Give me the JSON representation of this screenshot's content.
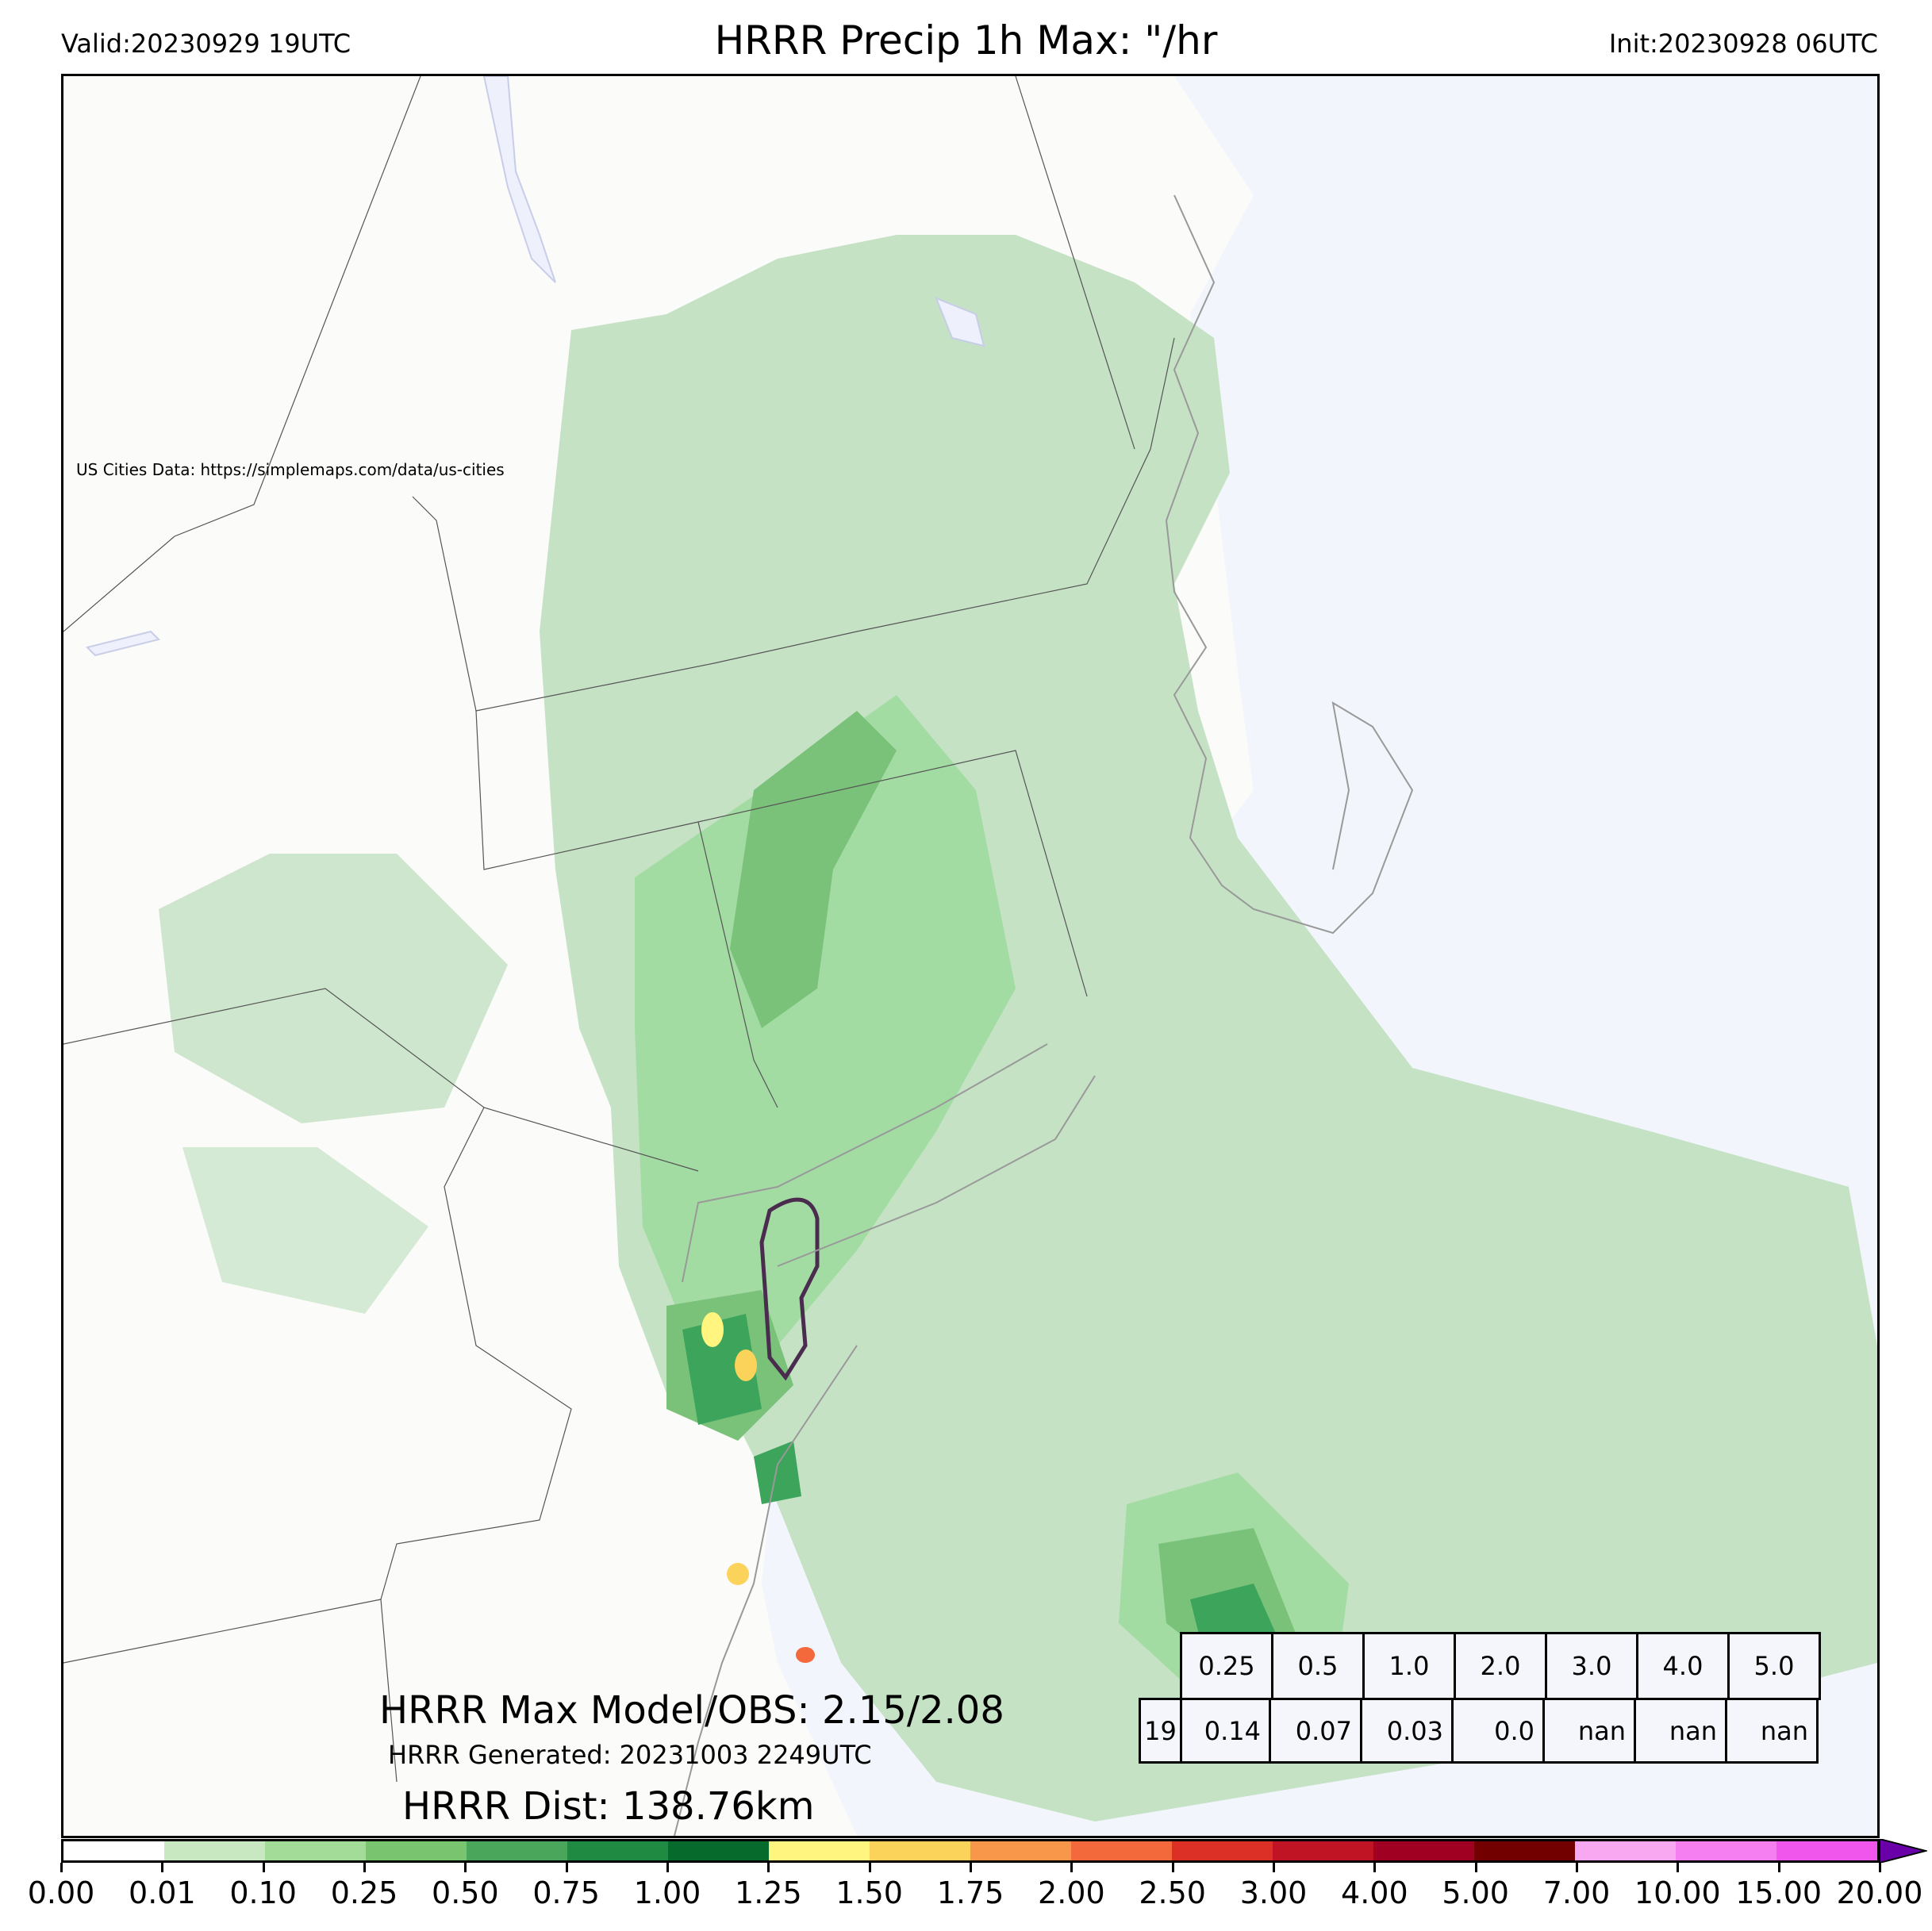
{
  "header": {
    "valid": "Valid:20230929 19UTC",
    "title": "HRRR Precip 1h Max: \"/hr",
    "init": "Init:20230928 06UTC"
  },
  "map": {
    "credit": "US Cities Data: https://simplemaps.com/data/us-cities",
    "max_model_obs": "HRRR Max Model/OBS: 2.15/2.08",
    "generated": "HRRR Generated: 20231003 2249UTC",
    "dist": "HRRR Dist: 138.76km",
    "colors": {
      "land": "#fbfbf9",
      "ocean": "#f2f5fb",
      "water_outline": "#c8cde8",
      "light_green": "#c5e2c5",
      "mid_green": "#a3dca3",
      "green": "#7ac27a",
      "dark_green": "#3da45c",
      "deep_green": "#0f6e30",
      "contour": "#4a2c4f"
    }
  },
  "stats_table": {
    "thresholds": [
      "0.25",
      "0.5",
      "1.0",
      "2.0",
      "3.0",
      "4.0",
      "5.0"
    ],
    "row_label": "19",
    "values": [
      "0.14",
      "0.07",
      "0.03",
      "0.0",
      "nan",
      "nan",
      "nan"
    ]
  },
  "colorbar": {
    "ticks": [
      "0.00",
      "0.01",
      "0.10",
      "0.25",
      "0.50",
      "0.75",
      "1.00",
      "1.25",
      "1.50",
      "1.75",
      "2.00",
      "2.50",
      "3.00",
      "4.00",
      "5.00",
      "7.00",
      "10.00",
      "15.00",
      "20.00"
    ],
    "colors": [
      "#ffffff",
      "#c7e8c1",
      "#a2dc98",
      "#78c46f",
      "#4aa65a",
      "#1f8a41",
      "#066a2c",
      "#fff57f",
      "#fbd25a",
      "#f8974a",
      "#f4693c",
      "#dc3026",
      "#c01323",
      "#a00021",
      "#720000",
      "#f7a8f1",
      "#f57ff0",
      "#f055ec",
      "#e02de8",
      "#b617d6",
      "#7c00c2"
    ],
    "extend_color": "#6a00a8"
  }
}
